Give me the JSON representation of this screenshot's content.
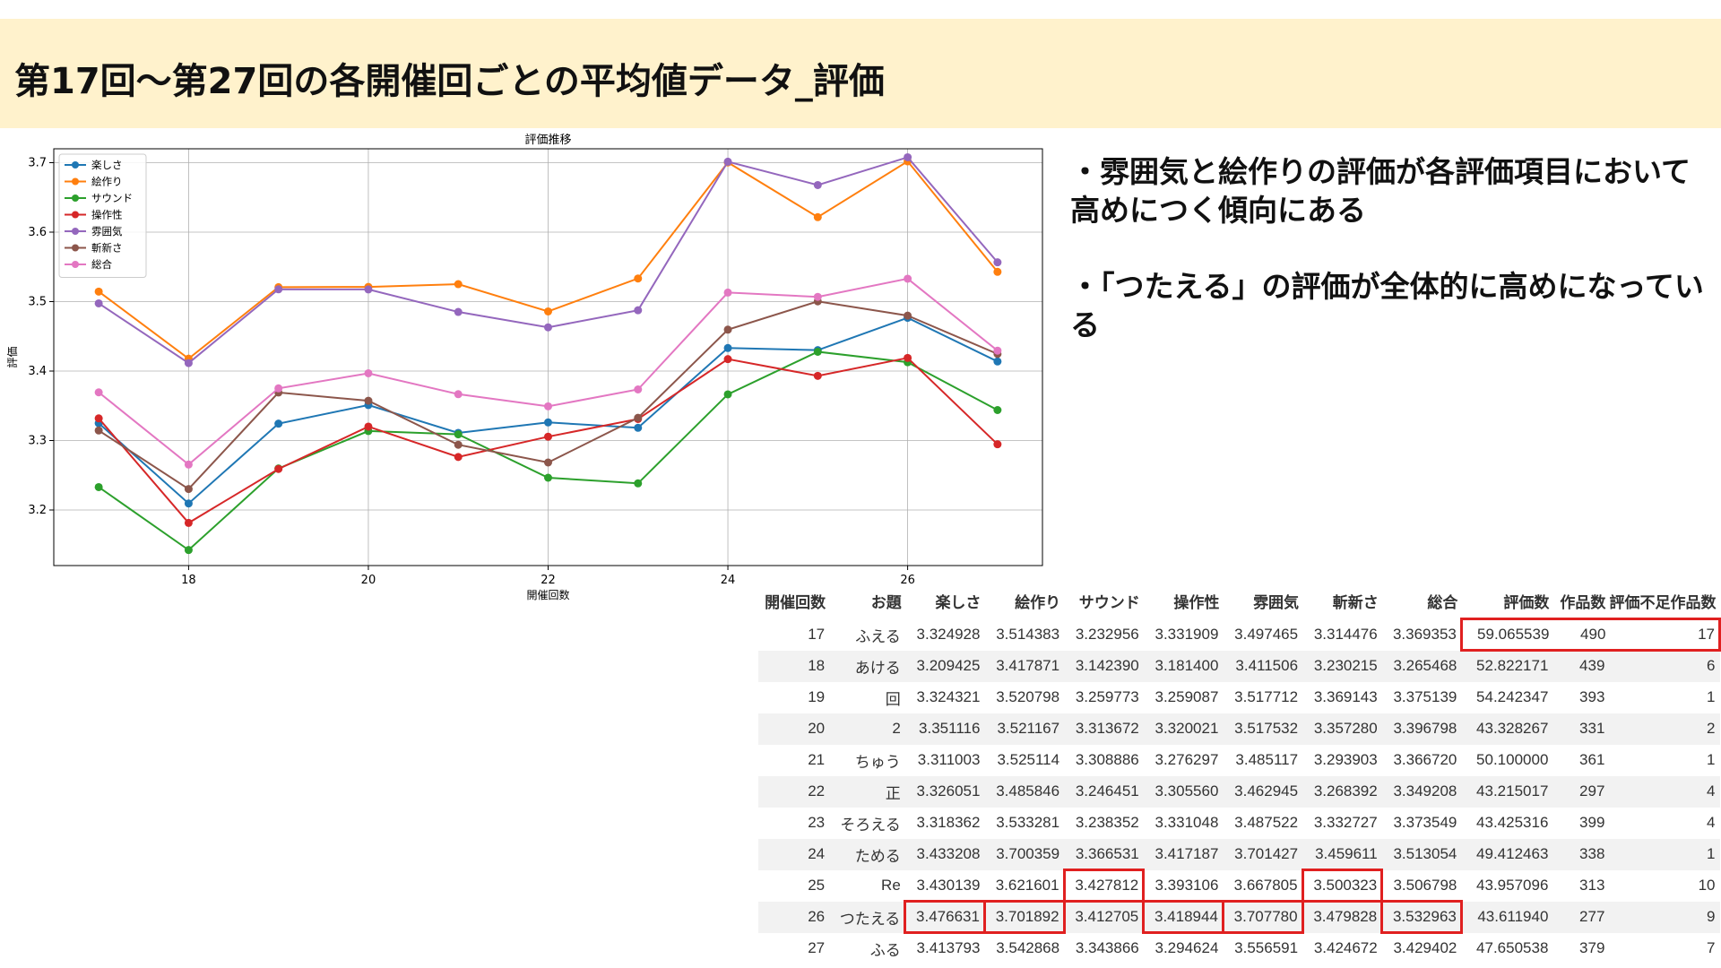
{
  "page": {
    "title": "第17回〜第27回の各開催回ごとの平均値データ_評価",
    "bullets": [
      "・雰囲気と絵作りの評価が各評価項目において高めにつく傾向にある",
      "・「つたえる」の評価が全体的に高めになっている"
    ]
  },
  "chart_data": {
    "type": "line",
    "title": "評価推移",
    "xlabel": "開催回数",
    "ylabel": "評価",
    "x": [
      17,
      18,
      19,
      20,
      21,
      22,
      23,
      24,
      25,
      26,
      27
    ],
    "xlim": [
      16.5,
      27.5
    ],
    "ylim": [
      3.12,
      3.72
    ],
    "xticks": [
      18,
      20,
      22,
      24,
      26
    ],
    "yticks": [
      3.2,
      3.3,
      3.4,
      3.5,
      3.6,
      3.7
    ],
    "grid": true,
    "legend_position": "top-left",
    "series": [
      {
        "name": "楽しさ",
        "color": "#1f77b4",
        "values": [
          3.324928,
          3.209425,
          3.324321,
          3.351116,
          3.311003,
          3.326051,
          3.318362,
          3.433208,
          3.430139,
          3.476631,
          3.413793
        ]
      },
      {
        "name": "絵作り",
        "color": "#ff7f0e",
        "values": [
          3.514383,
          3.417871,
          3.520798,
          3.521167,
          3.525114,
          3.485846,
          3.533281,
          3.700359,
          3.621601,
          3.701892,
          3.542868
        ]
      },
      {
        "name": "サウンド",
        "color": "#2ca02c",
        "values": [
          3.232956,
          3.14239,
          3.259773,
          3.313672,
          3.308886,
          3.246451,
          3.238352,
          3.366531,
          3.427812,
          3.412705,
          3.343866
        ]
      },
      {
        "name": "操作性",
        "color": "#d62728",
        "values": [
          3.331909,
          3.1814,
          3.259087,
          3.320021,
          3.276297,
          3.30556,
          3.331048,
          3.417187,
          3.393106,
          3.418944,
          3.294624
        ]
      },
      {
        "name": "雰囲気",
        "color": "#9467bd",
        "values": [
          3.497465,
          3.411506,
          3.517712,
          3.517532,
          3.485117,
          3.462945,
          3.487522,
          3.701427,
          3.667805,
          3.70778,
          3.556591
        ]
      },
      {
        "name": "斬新さ",
        "color": "#8c564b",
        "values": [
          3.314476,
          3.230215,
          3.369143,
          3.35728,
          3.293903,
          3.268392,
          3.332727,
          3.459611,
          3.500323,
          3.479828,
          3.424672
        ]
      },
      {
        "name": "総合",
        "color": "#e377c2",
        "values": [
          3.369353,
          3.265468,
          3.375139,
          3.396798,
          3.36672,
          3.349208,
          3.373549,
          3.513054,
          3.506798,
          3.532963,
          3.429402
        ]
      }
    ]
  },
  "table": {
    "headers": [
      "開催回数",
      "お題",
      "楽しさ",
      "絵作り",
      "サウンド",
      "操作性",
      "雰囲気",
      "斬新さ",
      "総合",
      "評価数",
      "作品数",
      "評価不足作品数"
    ],
    "rows": [
      [
        "17",
        "ふえる",
        "3.324928",
        "3.514383",
        "3.232956",
        "3.331909",
        "3.497465",
        "3.314476",
        "3.369353",
        "59.065539",
        "490",
        "17"
      ],
      [
        "18",
        "あける",
        "3.209425",
        "3.417871",
        "3.142390",
        "3.181400",
        "3.411506",
        "3.230215",
        "3.265468",
        "52.822171",
        "439",
        "6"
      ],
      [
        "19",
        "回",
        "3.324321",
        "3.520798",
        "3.259773",
        "3.259087",
        "3.517712",
        "3.369143",
        "3.375139",
        "54.242347",
        "393",
        "1"
      ],
      [
        "20",
        "2",
        "3.351116",
        "3.521167",
        "3.313672",
        "3.320021",
        "3.517532",
        "3.357280",
        "3.396798",
        "43.328267",
        "331",
        "2"
      ],
      [
        "21",
        "ちゅう",
        "3.311003",
        "3.525114",
        "3.308886",
        "3.276297",
        "3.485117",
        "3.293903",
        "3.366720",
        "50.100000",
        "361",
        "1"
      ],
      [
        "22",
        "正",
        "3.326051",
        "3.485846",
        "3.246451",
        "3.305560",
        "3.462945",
        "3.268392",
        "3.349208",
        "43.215017",
        "297",
        "4"
      ],
      [
        "23",
        "そろえる",
        "3.318362",
        "3.533281",
        "3.238352",
        "3.331048",
        "3.487522",
        "3.332727",
        "3.373549",
        "43.425316",
        "399",
        "4"
      ],
      [
        "24",
        "ためる",
        "3.433208",
        "3.700359",
        "3.366531",
        "3.417187",
        "3.701427",
        "3.459611",
        "3.513054",
        "49.412463",
        "338",
        "1"
      ],
      [
        "25",
        "Re",
        "3.430139",
        "3.621601",
        "3.427812",
        "3.393106",
        "3.667805",
        "3.500323",
        "3.506798",
        "43.957096",
        "313",
        "10"
      ],
      [
        "26",
        "つたえる",
        "3.476631",
        "3.701892",
        "3.412705",
        "3.418944",
        "3.707780",
        "3.479828",
        "3.532963",
        "43.611940",
        "277",
        "9"
      ],
      [
        "27",
        "ふる",
        "3.413793",
        "3.542868",
        "3.343866",
        "3.294624",
        "3.556591",
        "3.424672",
        "3.429402",
        "47.650538",
        "379",
        "7"
      ]
    ],
    "highlighted_cells": [
      [
        8,
        4
      ],
      [
        8,
        7
      ],
      [
        9,
        2
      ],
      [
        9,
        3
      ],
      [
        9,
        5
      ],
      [
        9,
        6
      ],
      [
        9,
        8
      ]
    ],
    "highlighted_row_range": {
      "row": 0,
      "from_col": 9,
      "to_col": 11
    }
  }
}
